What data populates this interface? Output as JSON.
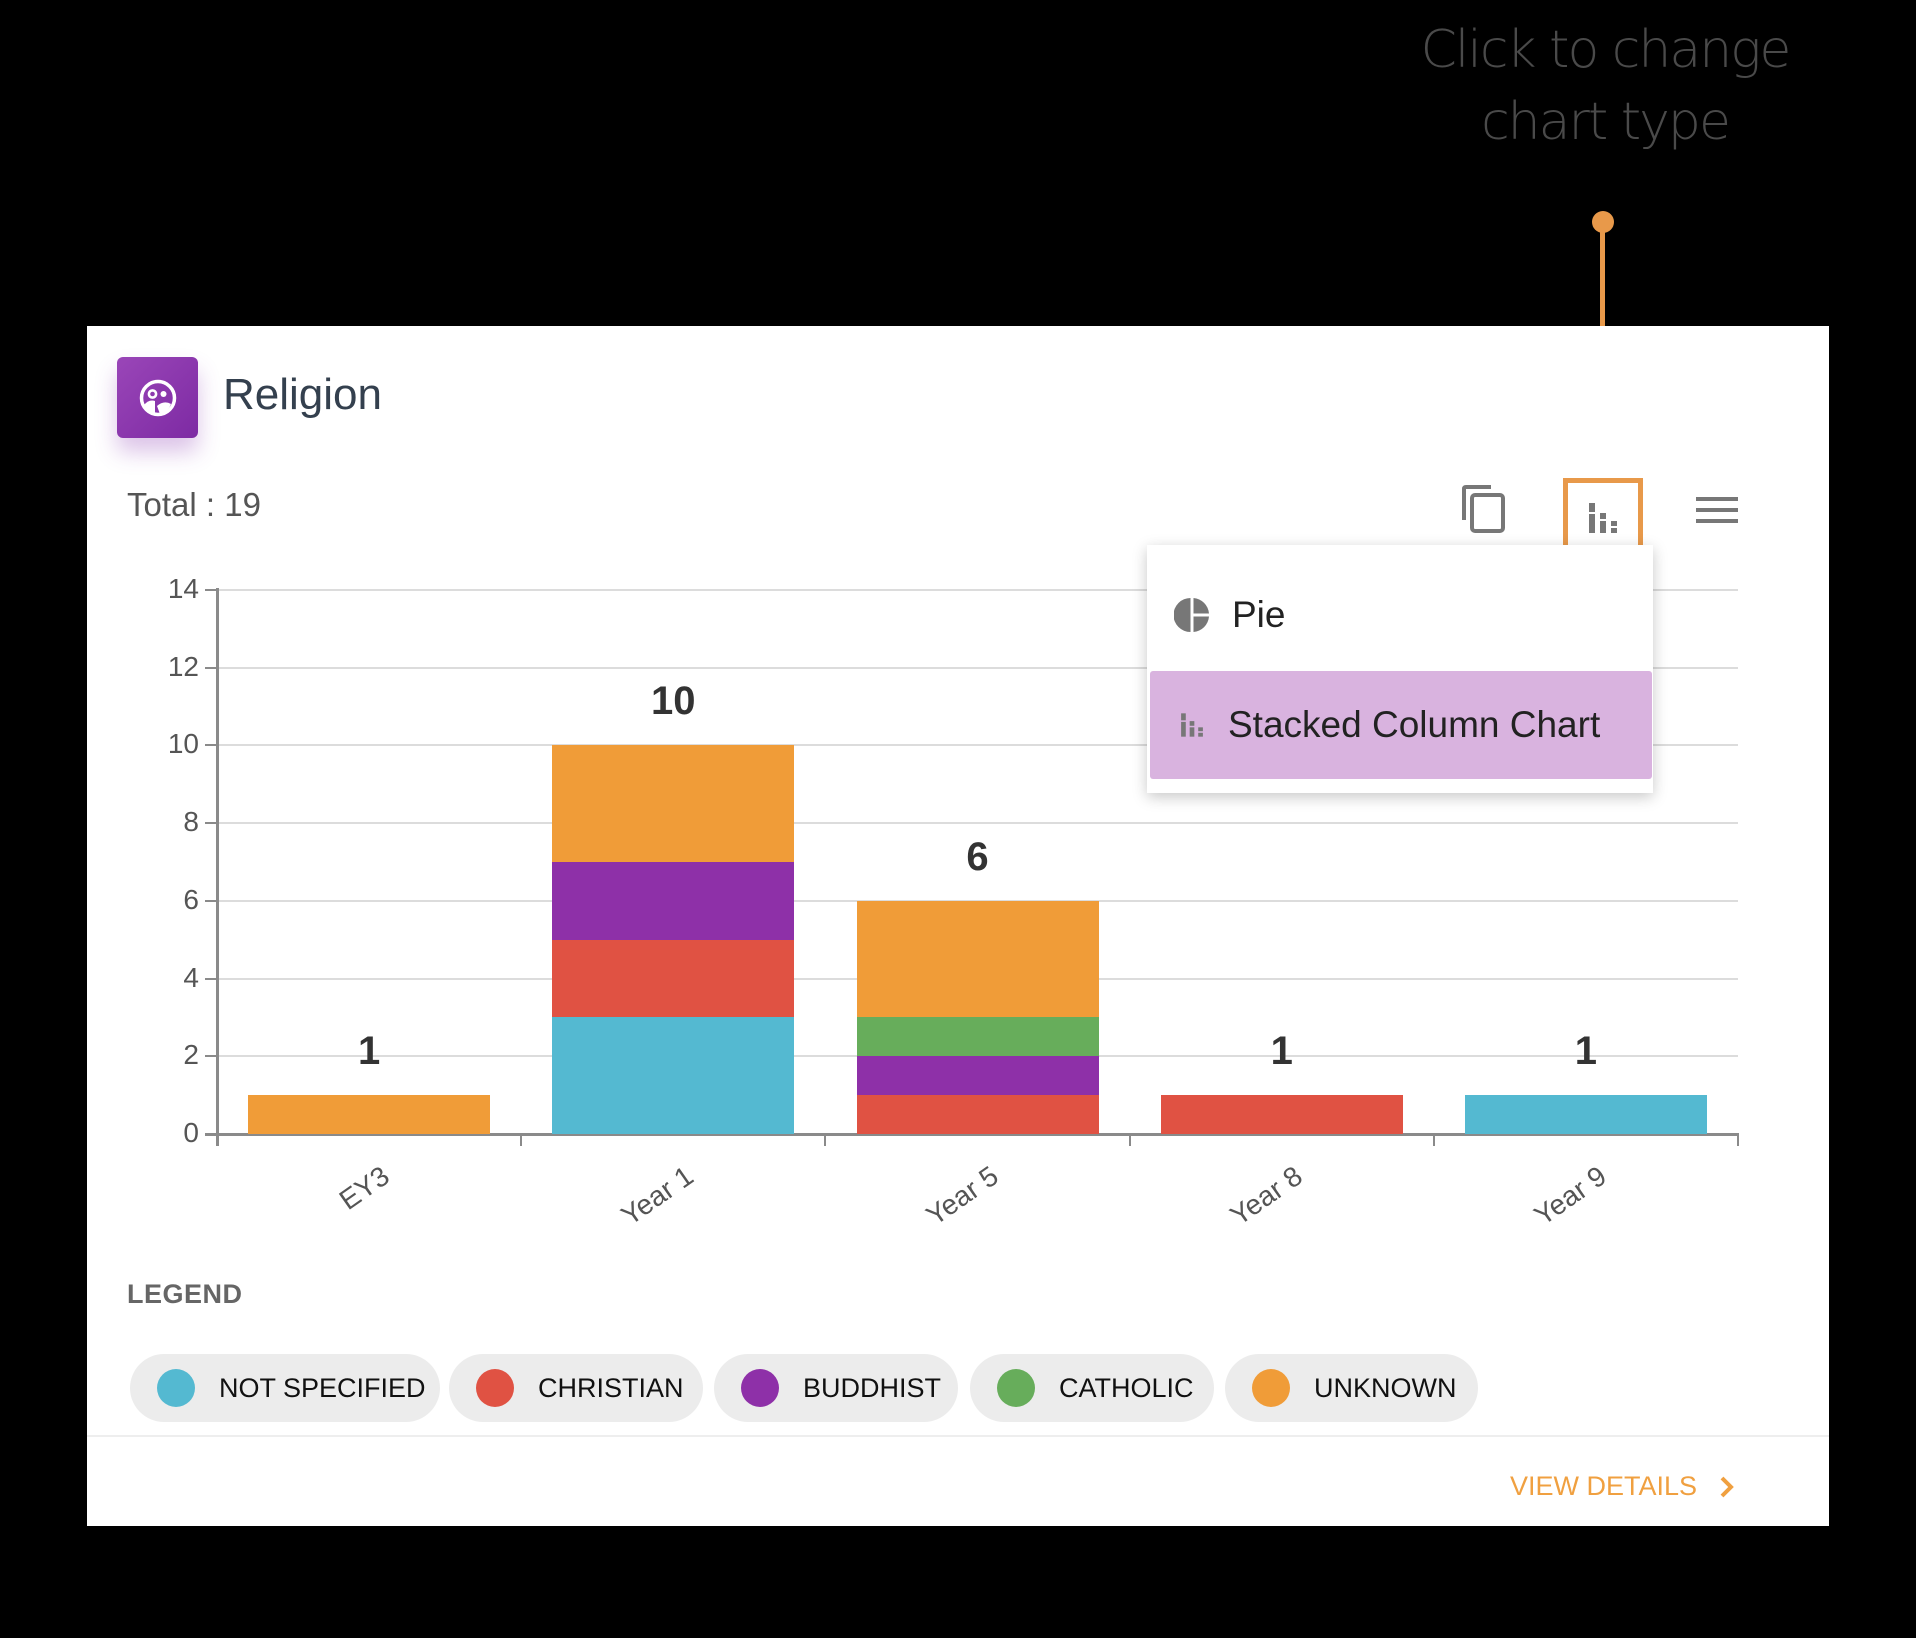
{
  "annotation": {
    "line1": "Click to change",
    "line2": "chart type",
    "color": "#E8994A"
  },
  "card": {
    "title": "Religion",
    "icon": "religion-people-icon",
    "total_label": "Total : 19",
    "toolbar": {
      "copy_icon": "copy-icon",
      "chart_type_icon": "stacked-column-icon",
      "menu_icon": "hamburger-menu-icon"
    },
    "dropdown": {
      "items": [
        {
          "label": "Pie",
          "icon": "pie-chart-icon",
          "selected": false
        },
        {
          "label": "Stacked Column Chart",
          "icon": "stacked-column-icon",
          "selected": true
        }
      ],
      "highlight_color": "#D9B3DF"
    },
    "legend": {
      "title": "LEGEND",
      "items": [
        {
          "label": "NOT SPECIFIED",
          "color": "#54B9D1"
        },
        {
          "label": "CHRISTIAN",
          "color": "#E05243"
        },
        {
          "label": "BUDDHIST",
          "color": "#8E30A8"
        },
        {
          "label": "CATHOLIC",
          "color": "#67AD5B"
        },
        {
          "label": "UNKNOWN",
          "color": "#F09C38"
        }
      ]
    },
    "view_details": "VIEW DETAILS"
  },
  "chart_data": {
    "type": "bar",
    "stacked": true,
    "title": "Religion",
    "categories": [
      "EY3",
      "Year 1",
      "Year 5",
      "Year 8",
      "Year 9"
    ],
    "series": [
      {
        "name": "NOT SPECIFIED",
        "color": "#54B9D1",
        "values": [
          0,
          3,
          0,
          0,
          1
        ]
      },
      {
        "name": "CHRISTIAN",
        "color": "#E05243",
        "values": [
          0,
          2,
          1,
          1,
          0
        ]
      },
      {
        "name": "BUDDHIST",
        "color": "#8E30A8",
        "values": [
          0,
          2,
          1,
          0,
          0
        ]
      },
      {
        "name": "CATHOLIC",
        "color": "#67AD5B",
        "values": [
          0,
          0,
          1,
          0,
          0
        ]
      },
      {
        "name": "UNKNOWN",
        "color": "#F09C38",
        "values": [
          1,
          3,
          3,
          0,
          0
        ]
      }
    ],
    "totals": [
      "1",
      "10",
      "6",
      "1",
      "1"
    ],
    "yticks": [
      "0",
      "2",
      "4",
      "6",
      "8",
      "10",
      "12",
      "14"
    ],
    "ylim": [
      0,
      14
    ],
    "xlabel": "",
    "ylabel": "",
    "grid": true,
    "legend_position": "bottom"
  }
}
